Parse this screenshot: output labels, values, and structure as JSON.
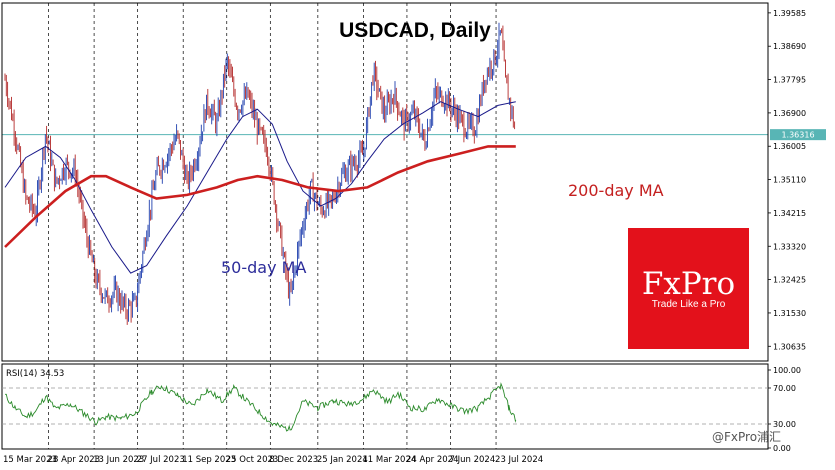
{
  "chart_data": [
    {
      "type": "candlestick",
      "title": "USDCAD, Daily",
      "y_ticks": [
        "1.39585",
        "1.38690",
        "1.37795",
        "1.36900",
        "1.36005",
        "1.35110",
        "1.34215",
        "1.33320",
        "1.32425",
        "1.31530",
        "1.30635"
      ],
      "ylim": [
        1.3024,
        1.3985
      ],
      "current_price": "1.36316",
      "x_ticks": [
        "15 Mar 2023",
        "28 Apr 2023",
        "13 Jun 2023",
        "27 Jul 2023",
        "11 Sep 2023",
        "25 Oct 2023",
        "8 Dec 2023",
        "25 Jan 2024",
        "11 Mar 2024",
        "24 Apr 2024",
        "7 Jun 2024",
        "23 Jul 2024"
      ],
      "grid": "vertical dashed",
      "price_path": [
        {
          "d": "2023-03-15",
          "v": 1.378
        },
        {
          "d": "2023-03-25",
          "v": 1.364
        },
        {
          "d": "2023-04-05",
          "v": 1.346
        },
        {
          "d": "2023-04-15",
          "v": 1.342
        },
        {
          "d": "2023-04-25",
          "v": 1.364
        },
        {
          "d": "2023-05-05",
          "v": 1.35
        },
        {
          "d": "2023-05-15",
          "v": 1.355
        },
        {
          "d": "2023-05-25",
          "v": 1.353
        },
        {
          "d": "2023-06-05",
          "v": 1.336
        },
        {
          "d": "2023-06-15",
          "v": 1.324
        },
        {
          "d": "2023-06-25",
          "v": 1.319
        },
        {
          "d": "2023-07-05",
          "v": 1.321
        },
        {
          "d": "2023-07-15",
          "v": 1.316
        },
        {
          "d": "2023-07-25",
          "v": 1.318
        },
        {
          "d": "2023-08-05",
          "v": 1.338
        },
        {
          "d": "2023-08-15",
          "v": 1.353
        },
        {
          "d": "2023-08-25",
          "v": 1.357
        },
        {
          "d": "2023-09-05",
          "v": 1.363
        },
        {
          "d": "2023-09-15",
          "v": 1.35
        },
        {
          "d": "2023-09-25",
          "v": 1.358
        },
        {
          "d": "2023-10-05",
          "v": 1.372
        },
        {
          "d": "2023-10-15",
          "v": 1.366
        },
        {
          "d": "2023-10-25",
          "v": 1.383
        },
        {
          "d": "2023-11-05",
          "v": 1.37
        },
        {
          "d": "2023-11-15",
          "v": 1.374
        },
        {
          "d": "2023-11-25",
          "v": 1.365
        },
        {
          "d": "2023-12-05",
          "v": 1.359
        },
        {
          "d": "2023-12-15",
          "v": 1.341
        },
        {
          "d": "2023-12-28",
          "v": 1.319
        },
        {
          "d": "2024-01-08",
          "v": 1.337
        },
        {
          "d": "2024-01-18",
          "v": 1.349
        },
        {
          "d": "2024-01-28",
          "v": 1.343
        },
        {
          "d": "2024-02-08",
          "v": 1.345
        },
        {
          "d": "2024-02-18",
          "v": 1.352
        },
        {
          "d": "2024-02-28",
          "v": 1.355
        },
        {
          "d": "2024-03-11",
          "v": 1.358
        },
        {
          "d": "2024-03-21",
          "v": 1.38
        },
        {
          "d": "2024-04-01",
          "v": 1.369
        },
        {
          "d": "2024-04-11",
          "v": 1.374
        },
        {
          "d": "2024-04-21",
          "v": 1.366
        },
        {
          "d": "2024-05-01",
          "v": 1.369
        },
        {
          "d": "2024-05-12",
          "v": 1.361
        },
        {
          "d": "2024-05-22",
          "v": 1.374
        },
        {
          "d": "2024-06-01",
          "v": 1.373
        },
        {
          "d": "2024-06-12",
          "v": 1.369
        },
        {
          "d": "2024-06-22",
          "v": 1.365
        },
        {
          "d": "2024-07-02",
          "v": 1.365
        },
        {
          "d": "2024-07-12",
          "v": 1.379
        },
        {
          "d": "2024-07-22",
          "v": 1.384
        },
        {
          "d": "2024-07-28",
          "v": 1.391
        },
        {
          "d": "2024-08-01",
          "v": 1.378
        },
        {
          "d": "2024-08-08",
          "v": 1.369
        },
        {
          "d": "2024-08-12",
          "v": 1.363
        }
      ],
      "series": [
        {
          "name": "50-day MA",
          "color": "#1a1a8a",
          "points": [
            {
              "d": "2023-03-15",
              "v": 1.349
            },
            {
              "d": "2023-04-05",
              "v": 1.357
            },
            {
              "d": "2023-04-25",
              "v": 1.36
            },
            {
              "d": "2023-05-10",
              "v": 1.357
            },
            {
              "d": "2023-05-25",
              "v": 1.351
            },
            {
              "d": "2023-06-10",
              "v": 1.343
            },
            {
              "d": "2023-07-01",
              "v": 1.333
            },
            {
              "d": "2023-07-20",
              "v": 1.326
            },
            {
              "d": "2023-08-05",
              "v": 1.328
            },
            {
              "d": "2023-08-25",
              "v": 1.336
            },
            {
              "d": "2023-09-15",
              "v": 1.344
            },
            {
              "d": "2023-10-05",
              "v": 1.353
            },
            {
              "d": "2023-10-25",
              "v": 1.362
            },
            {
              "d": "2023-11-10",
              "v": 1.368
            },
            {
              "d": "2023-11-25",
              "v": 1.37
            },
            {
              "d": "2023-12-10",
              "v": 1.366
            },
            {
              "d": "2023-12-25",
              "v": 1.356
            },
            {
              "d": "2024-01-10",
              "v": 1.348
            },
            {
              "d": "2024-01-28",
              "v": 1.344
            },
            {
              "d": "2024-02-12",
              "v": 1.346
            },
            {
              "d": "2024-02-28",
              "v": 1.35
            },
            {
              "d": "2024-03-15",
              "v": 1.356
            },
            {
              "d": "2024-04-01",
              "v": 1.362
            },
            {
              "d": "2024-04-20",
              "v": 1.366
            },
            {
              "d": "2024-05-10",
              "v": 1.369
            },
            {
              "d": "2024-05-28",
              "v": 1.372
            },
            {
              "d": "2024-06-15",
              "v": 1.37
            },
            {
              "d": "2024-07-05",
              "v": 1.368
            },
            {
              "d": "2024-07-25",
              "v": 1.371
            },
            {
              "d": "2024-08-12",
              "v": 1.372
            }
          ]
        },
        {
          "name": "200-day MA",
          "color": "#cc1f1f",
          "points": [
            {
              "d": "2023-03-15",
              "v": 1.333
            },
            {
              "d": "2023-04-15",
              "v": 1.341
            },
            {
              "d": "2023-05-15",
              "v": 1.348
            },
            {
              "d": "2023-06-10",
              "v": 1.352
            },
            {
              "d": "2023-06-25",
              "v": 1.352
            },
            {
              "d": "2023-07-20",
              "v": 1.349
            },
            {
              "d": "2023-08-15",
              "v": 1.346
            },
            {
              "d": "2023-09-15",
              "v": 1.347
            },
            {
              "d": "2023-10-15",
              "v": 1.349
            },
            {
              "d": "2023-11-05",
              "v": 1.351
            },
            {
              "d": "2023-11-25",
              "v": 1.352
            },
            {
              "d": "2023-12-20",
              "v": 1.351
            },
            {
              "d": "2024-01-15",
              "v": 1.349
            },
            {
              "d": "2024-02-15",
              "v": 1.348
            },
            {
              "d": "2024-03-15",
              "v": 1.349
            },
            {
              "d": "2024-04-15",
              "v": 1.353
            },
            {
              "d": "2024-05-15",
              "v": 1.356
            },
            {
              "d": "2024-06-15",
              "v": 1.358
            },
            {
              "d": "2024-07-15",
              "v": 1.36
            },
            {
              "d": "2024-08-12",
              "v": 1.36
            }
          ]
        }
      ]
    },
    {
      "type": "line",
      "title": "RSI(14) 34.53",
      "name": "RSI(14)",
      "y_ticks": [
        "100.00",
        "70.00",
        "30.00",
        "0.00"
      ],
      "ylim": [
        0,
        100
      ],
      "levels": [
        70,
        30
      ],
      "color": "#2a8a2a",
      "points": [
        {
          "d": "2023-03-15",
          "v": 62
        },
        {
          "d": "2023-03-25",
          "v": 48
        },
        {
          "d": "2023-04-05",
          "v": 38
        },
        {
          "d": "2023-04-15",
          "v": 44
        },
        {
          "d": "2023-04-25",
          "v": 61
        },
        {
          "d": "2023-05-05",
          "v": 47
        },
        {
          "d": "2023-05-20",
          "v": 52
        },
        {
          "d": "2023-06-05",
          "v": 40
        },
        {
          "d": "2023-06-15",
          "v": 32
        },
        {
          "d": "2023-06-25",
          "v": 38
        },
        {
          "d": "2023-07-10",
          "v": 36
        },
        {
          "d": "2023-07-25",
          "v": 42
        },
        {
          "d": "2023-08-10",
          "v": 66
        },
        {
          "d": "2023-08-20",
          "v": 72
        },
        {
          "d": "2023-09-05",
          "v": 62
        },
        {
          "d": "2023-09-20",
          "v": 50
        },
        {
          "d": "2023-10-05",
          "v": 68
        },
        {
          "d": "2023-10-20",
          "v": 56
        },
        {
          "d": "2023-11-01",
          "v": 70
        },
        {
          "d": "2023-11-15",
          "v": 55
        },
        {
          "d": "2023-11-28",
          "v": 42
        },
        {
          "d": "2023-12-10",
          "v": 30
        },
        {
          "d": "2023-12-28",
          "v": 24
        },
        {
          "d": "2024-01-10",
          "v": 55
        },
        {
          "d": "2024-01-25",
          "v": 48
        },
        {
          "d": "2024-02-10",
          "v": 56
        },
        {
          "d": "2024-02-25",
          "v": 52
        },
        {
          "d": "2024-03-11",
          "v": 58
        },
        {
          "d": "2024-03-21",
          "v": 68
        },
        {
          "d": "2024-04-05",
          "v": 54
        },
        {
          "d": "2024-04-15",
          "v": 64
        },
        {
          "d": "2024-04-28",
          "v": 48
        },
        {
          "d": "2024-05-12",
          "v": 46
        },
        {
          "d": "2024-05-25",
          "v": 58
        },
        {
          "d": "2024-06-08",
          "v": 50
        },
        {
          "d": "2024-06-22",
          "v": 44
        },
        {
          "d": "2024-07-05",
          "v": 48
        },
        {
          "d": "2024-07-18",
          "v": 62
        },
        {
          "d": "2024-07-28",
          "v": 73
        },
        {
          "d": "2024-08-05",
          "v": 48
        },
        {
          "d": "2024-08-12",
          "v": 34.53
        }
      ]
    }
  ],
  "annotations": {
    "ma50_label": "50-day MA",
    "ma200_label": "200-day MA"
  },
  "logo": {
    "brand": "FxPro",
    "tagline": "Trade Like a Pro",
    "color": "#e3111b"
  },
  "watermark": "@FxPro浦汇",
  "colors": {
    "bull": "#1f3fae",
    "bear": "#b32a2a",
    "current_line": "#58b5b5",
    "price_tag_bg": "#58b5b5"
  }
}
